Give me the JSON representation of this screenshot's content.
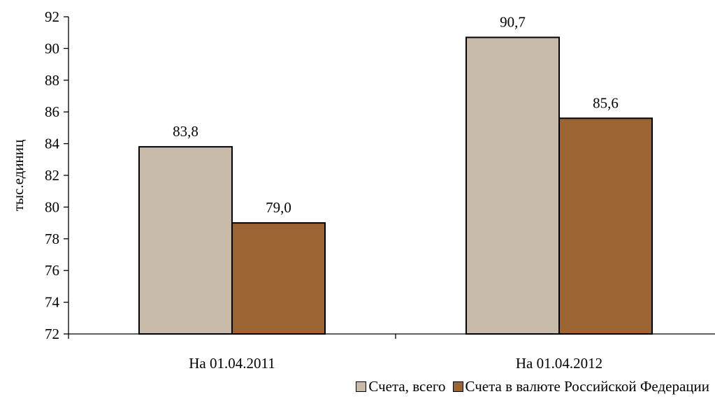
{
  "chart_data": {
    "type": "bar",
    "title": "",
    "xlabel": "",
    "ylabel": "тыс.единиц",
    "ylim": [
      72,
      92
    ],
    "yticks": [
      72,
      74,
      76,
      78,
      80,
      82,
      84,
      86,
      88,
      90,
      92
    ],
    "categories": [
      "На 01.04.2011",
      "На 01.04.2012"
    ],
    "series": [
      {
        "name": "Счета, всего",
        "values": [
          83.8,
          90.7
        ],
        "labels": [
          "83,8",
          "90,7"
        ],
        "color": "#c8baa9"
      },
      {
        "name": "Счета в валюте Российской Федерации",
        "values": [
          79.0,
          85.6
        ],
        "labels": [
          "79,0",
          "85,6"
        ],
        "color": "#9c6333"
      }
    ],
    "grid": false,
    "legend_position": "bottom-right"
  }
}
